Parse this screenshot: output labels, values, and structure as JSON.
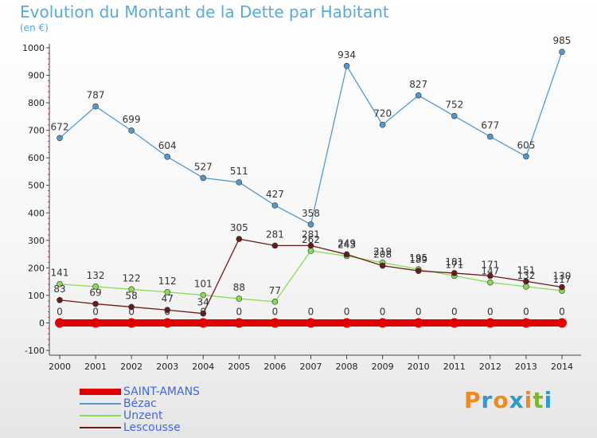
{
  "title": "Evolution du Montant de la Dette par Habitant",
  "unit": "(en €)",
  "logo": {
    "text": "Proxiti",
    "colors": [
      "#f08a1c",
      "#2b9ad6",
      "#f08a1c",
      "#2b9ad6",
      "#f08a1c",
      "#7ab82f",
      "#2b9ad6"
    ]
  },
  "chart_data": {
    "type": "line",
    "title": "Evolution du Montant de la Dette par Habitant",
    "ylabel": "(en €)",
    "xlabel": "",
    "ylim": [
      -100,
      1000
    ],
    "yticks": [
      -100,
      0,
      100,
      200,
      300,
      400,
      500,
      600,
      700,
      800,
      900,
      1000
    ],
    "grid": false,
    "legend_position": "bottom-left",
    "x": [
      2000,
      2001,
      2002,
      2003,
      2004,
      2005,
      2006,
      2007,
      2008,
      2009,
      2010,
      2011,
      2012,
      2013,
      2014
    ],
    "series": [
      {
        "name": "SAINT-AMANS",
        "color": "#e00000",
        "values": [
          0,
          0,
          0,
          0,
          0,
          0,
          0,
          0,
          0,
          0,
          0,
          0,
          0,
          0,
          0
        ]
      },
      {
        "name": "Bézac",
        "color": "#5599cc",
        "values": [
          672,
          787,
          699,
          604,
          527,
          511,
          427,
          358,
          934,
          720,
          827,
          752,
          677,
          605,
          985
        ]
      },
      {
        "name": "Unzent",
        "color": "#88dd55",
        "values": [
          141,
          132,
          122,
          112,
          101,
          88,
          77,
          262,
          243,
          219,
          195,
          171,
          147,
          132,
          117
        ]
      },
      {
        "name": "Lescousse",
        "color": "#6b1a1a",
        "values": [
          83,
          69,
          58,
          47,
          34,
          305,
          281,
          281,
          249,
          208,
          189,
          181,
          171,
          151,
          130
        ]
      }
    ],
    "data_labels": [
      {
        "series": "SAINT-AMANS",
        "labels": [
          "0",
          "0",
          "0",
          "0",
          "0",
          "0",
          "0",
          "0",
          "0",
          "0",
          "0",
          "0",
          "0",
          "0",
          "0"
        ]
      },
      {
        "series": "Bézac",
        "labels": [
          "672",
          "787",
          "699",
          "604",
          "527",
          "511",
          "427",
          "358",
          "934",
          "720",
          "827",
          "752",
          "677",
          "605",
          "985"
        ]
      },
      {
        "series": "Unzent",
        "labels": [
          "141",
          "132",
          "122",
          "112",
          "101",
          "88",
          "77",
          "262",
          "243",
          "219",
          "195",
          "171",
          "147",
          "132",
          "117"
        ]
      },
      {
        "series": "Lescousse",
        "labels": [
          "83",
          "69",
          "58",
          "47",
          "34",
          "305",
          "281",
          "281",
          "249",
          "208",
          "189",
          "181",
          "171",
          "151",
          "130"
        ]
      }
    ]
  }
}
